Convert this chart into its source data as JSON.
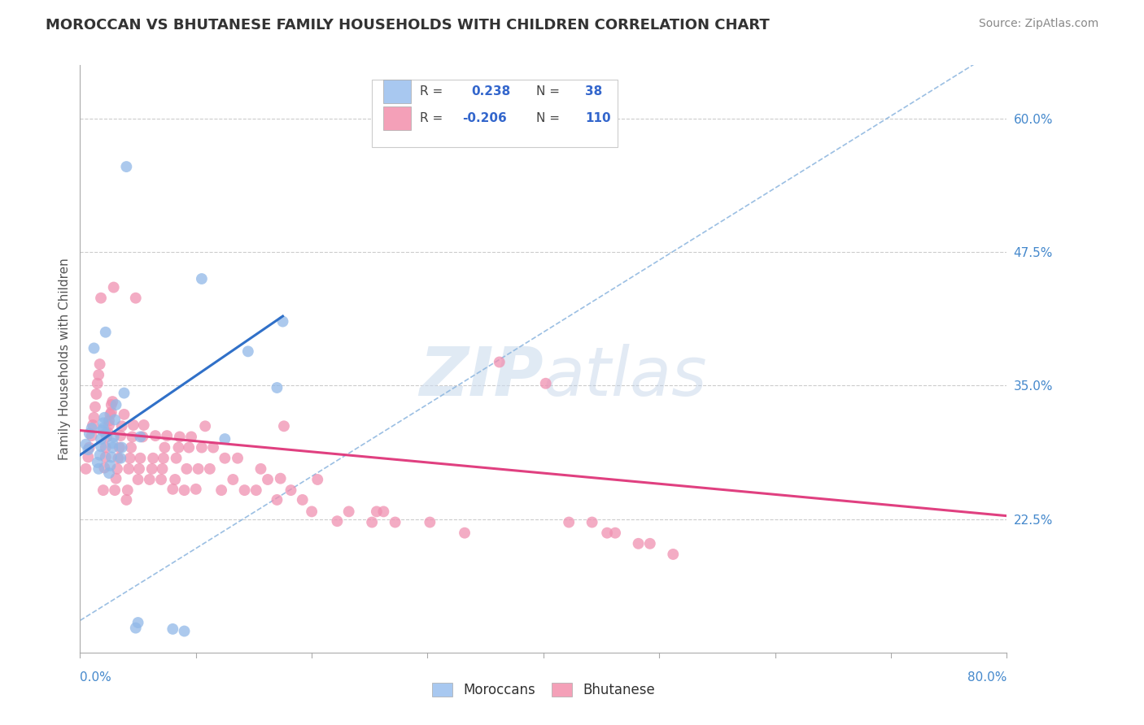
{
  "title": "MOROCCAN VS BHUTANESE FAMILY HOUSEHOLDS WITH CHILDREN CORRELATION CHART",
  "source": "Source: ZipAtlas.com",
  "ylabel": "Family Households with Children",
  "ytick_labels": [
    "60.0%",
    "47.5%",
    "35.0%",
    "22.5%"
  ],
  "ytick_values": [
    0.6,
    0.475,
    0.35,
    0.225
  ],
  "x_min": 0.0,
  "x_max": 0.8,
  "y_min": 0.1,
  "y_max": 0.65,
  "moroccan_color": "#a8c8f0",
  "bhutanese_color": "#f4a0b8",
  "moroccan_scatter_color": "#90b8e8",
  "bhutanese_scatter_color": "#f090b0",
  "trend_moroccan_color": "#3070c8",
  "trend_bhutanese_color": "#e04080",
  "trend_dashed_color": "#90b8e0",
  "watermark_color": "#ccdcee",
  "moroccan_x": [
    0.005,
    0.007,
    0.008,
    0.01,
    0.012,
    0.015,
    0.016,
    0.017,
    0.018,
    0.018,
    0.019,
    0.02,
    0.02,
    0.021,
    0.022,
    0.022,
    0.025,
    0.026,
    0.027,
    0.028,
    0.028,
    0.029,
    0.03,
    0.031,
    0.035,
    0.036,
    0.038,
    0.04,
    0.048,
    0.05,
    0.052,
    0.08,
    0.09,
    0.105,
    0.125,
    0.145,
    0.17,
    0.175
  ],
  "moroccan_y": [
    0.295,
    0.29,
    0.305,
    0.31,
    0.385,
    0.278,
    0.272,
    0.285,
    0.293,
    0.3,
    0.308,
    0.315,
    0.31,
    0.32,
    0.305,
    0.4,
    0.268,
    0.275,
    0.283,
    0.292,
    0.296,
    0.302,
    0.318,
    0.332,
    0.282,
    0.292,
    0.343,
    0.555,
    0.123,
    0.128,
    0.302,
    0.122,
    0.12,
    0.45,
    0.3,
    0.382,
    0.348,
    0.41
  ],
  "bhutanese_x": [
    0.005,
    0.007,
    0.008,
    0.01,
    0.011,
    0.012,
    0.013,
    0.014,
    0.015,
    0.016,
    0.017,
    0.018,
    0.02,
    0.021,
    0.022,
    0.022,
    0.023,
    0.024,
    0.025,
    0.025,
    0.026,
    0.027,
    0.027,
    0.028,
    0.029,
    0.03,
    0.031,
    0.032,
    0.033,
    0.034,
    0.035,
    0.036,
    0.038,
    0.04,
    0.041,
    0.042,
    0.043,
    0.044,
    0.045,
    0.046,
    0.048,
    0.05,
    0.051,
    0.052,
    0.054,
    0.055,
    0.06,
    0.062,
    0.063,
    0.065,
    0.07,
    0.071,
    0.072,
    0.073,
    0.075,
    0.08,
    0.082,
    0.083,
    0.085,
    0.086,
    0.09,
    0.092,
    0.094,
    0.096,
    0.1,
    0.102,
    0.105,
    0.108,
    0.112,
    0.115,
    0.122,
    0.125,
    0.132,
    0.136,
    0.142,
    0.152,
    0.156,
    0.162,
    0.17,
    0.173,
    0.176,
    0.182,
    0.192,
    0.2,
    0.205,
    0.222,
    0.232,
    0.252,
    0.256,
    0.262,
    0.272,
    0.302,
    0.332,
    0.362,
    0.402,
    0.422,
    0.442,
    0.455,
    0.462,
    0.482,
    0.492,
    0.512
  ],
  "bhutanese_y": [
    0.272,
    0.283,
    0.292,
    0.303,
    0.313,
    0.32,
    0.33,
    0.342,
    0.352,
    0.36,
    0.37,
    0.432,
    0.252,
    0.273,
    0.283,
    0.292,
    0.302,
    0.306,
    0.313,
    0.317,
    0.323,
    0.325,
    0.332,
    0.335,
    0.442,
    0.252,
    0.263,
    0.272,
    0.282,
    0.292,
    0.303,
    0.312,
    0.323,
    0.243,
    0.252,
    0.272,
    0.282,
    0.292,
    0.302,
    0.313,
    0.432,
    0.262,
    0.272,
    0.282,
    0.302,
    0.313,
    0.262,
    0.272,
    0.282,
    0.303,
    0.262,
    0.272,
    0.282,
    0.292,
    0.303,
    0.253,
    0.262,
    0.282,
    0.292,
    0.302,
    0.252,
    0.272,
    0.292,
    0.302,
    0.253,
    0.272,
    0.292,
    0.312,
    0.272,
    0.292,
    0.252,
    0.282,
    0.262,
    0.282,
    0.252,
    0.252,
    0.272,
    0.262,
    0.243,
    0.263,
    0.312,
    0.252,
    0.243,
    0.232,
    0.262,
    0.223,
    0.232,
    0.222,
    0.232,
    0.232,
    0.222,
    0.222,
    0.212,
    0.372,
    0.352,
    0.222,
    0.222,
    0.212,
    0.212,
    0.202,
    0.202,
    0.192
  ]
}
